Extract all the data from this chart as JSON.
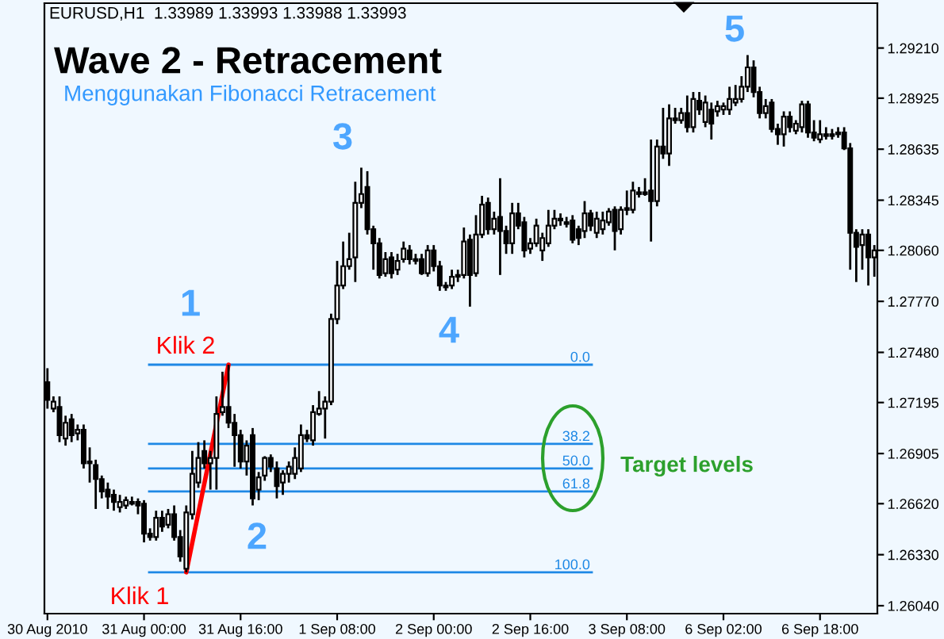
{
  "chart_data": {
    "type": "candlestick",
    "title": "Wave 2 - Retracement",
    "subtitle": "Menggunakan Fibonacci Retracement",
    "annotations": [
      "EURUSD,H1  1.33989 1.33993 1.33988 1.33993",
      "Klik 1",
      "Klik 2",
      "1",
      "2",
      "3",
      "4",
      "5",
      "Target levels",
      {
        "text": "0.0",
        "y": 1.2741
      },
      {
        "text": "38.2",
        "y": 1.2696
      },
      {
        "text": "50.0",
        "y": 1.2682
      },
      {
        "text": "61.8",
        "y": 1.2669
      },
      {
        "text": "100.0",
        "y": 1.2623
      }
    ],
    "categories": [
      "30 Aug 2010",
      null,
      null,
      null,
      null,
      null,
      null,
      null,
      null,
      null,
      null,
      null,
      null,
      null,
      null,
      null,
      "31 Aug 00:00",
      null,
      null,
      null,
      null,
      null,
      null,
      null,
      null,
      null,
      null,
      null,
      null,
      null,
      null,
      null,
      "31 Aug 16:00",
      null,
      null,
      null,
      null,
      null,
      null,
      null,
      null,
      null,
      null,
      null,
      null,
      null,
      null,
      null,
      "1 Sep 08:00",
      null,
      null,
      null,
      null,
      null,
      null,
      null,
      null,
      null,
      null,
      null,
      null,
      null,
      null,
      null,
      "2 Sep 00:00",
      null,
      null,
      null,
      null,
      null,
      null,
      null,
      null,
      null,
      null,
      null,
      null,
      null,
      null,
      null,
      "2 Sep 16:00",
      null,
      null,
      null,
      null,
      null,
      null,
      null,
      null,
      null,
      null,
      null,
      null,
      null,
      null,
      null,
      "3 Sep 08:00",
      null,
      null,
      null,
      null,
      null,
      null,
      null,
      null,
      null,
      null,
      null,
      null,
      null,
      null,
      null,
      "6 Sep 02:00",
      null,
      null,
      null,
      null,
      null,
      null,
      null,
      null,
      null,
      null,
      null,
      null,
      null,
      null,
      null,
      "6 Sep 18:00",
      null,
      null,
      null,
      null,
      null,
      null,
      null,
      null,
      null
    ],
    "ohlc": [
      [
        1.2731,
        1.2739,
        1.2716,
        1.2721
      ],
      [
        1.2716,
        1.2723,
        1.2714,
        1.272
      ],
      [
        1.2717,
        1.2723,
        1.2697,
        1.2701
      ],
      [
        1.2699,
        1.2712,
        1.2695,
        1.2708
      ],
      [
        1.271,
        1.2713,
        1.2697,
        1.2701
      ],
      [
        1.2702,
        1.2707,
        1.2698,
        1.2704
      ],
      [
        1.2704,
        1.2707,
        1.2682,
        1.2685
      ],
      [
        1.2685,
        1.2694,
        1.2674,
        1.2686
      ],
      [
        1.2684,
        1.2687,
        1.2659,
        1.2676
      ],
      [
        1.2676,
        1.2678,
        1.2665,
        1.2669
      ],
      [
        1.267,
        1.2674,
        1.2659,
        1.2666
      ],
      [
        1.2667,
        1.267,
        1.2658,
        1.2663
      ],
      [
        1.266,
        1.2667,
        1.2657,
        1.2663
      ],
      [
        1.2661,
        1.2666,
        1.2659,
        1.2664
      ],
      [
        1.2663,
        1.2666,
        1.2661,
        1.2662
      ],
      [
        1.2663,
        1.2665,
        1.2656,
        1.2661
      ],
      [
        1.2662,
        1.2664,
        1.264,
        1.2645
      ],
      [
        1.2645,
        1.2648,
        1.2641,
        1.2643
      ],
      [
        1.2643,
        1.2658,
        1.2641,
        1.2654
      ],
      [
        1.2654,
        1.2658,
        1.2646,
        1.2649
      ],
      [
        1.265,
        1.2659,
        1.2648,
        1.2656
      ],
      [
        1.2656,
        1.2661,
        1.2641,
        1.2643
      ],
      [
        1.2643,
        1.2647,
        1.2629,
        1.2632
      ],
      [
        1.2625,
        1.2661,
        1.2623,
        1.2657
      ],
      [
        1.2656,
        1.2692,
        1.2653,
        1.2679
      ],
      [
        1.2674,
        1.2697,
        1.2671,
        1.2688
      ],
      [
        1.2692,
        1.2698,
        1.2682,
        1.2685
      ],
      [
        1.2685,
        1.2692,
        1.267,
        1.2688
      ],
      [
        1.2688,
        1.2723,
        1.267,
        1.2713
      ],
      [
        1.2714,
        1.2737,
        1.2712,
        1.2717
      ],
      [
        1.2717,
        1.2741,
        1.2705,
        1.2708
      ],
      [
        1.2708,
        1.2713,
        1.2683,
        1.2701
      ],
      [
        1.2701,
        1.2704,
        1.2682,
        1.2686
      ],
      [
        1.2686,
        1.2698,
        1.2678,
        1.2695
      ],
      [
        1.2701,
        1.2705,
        1.2661,
        1.2665
      ],
      [
        1.267,
        1.268,
        1.2664,
        1.2677
      ],
      [
        1.2678,
        1.2689,
        1.2675,
        1.2688
      ],
      [
        1.2688,
        1.269,
        1.268,
        1.2683
      ],
      [
        1.2682,
        1.2686,
        1.2665,
        1.2672
      ],
      [
        1.2674,
        1.2681,
        1.2667,
        1.2679
      ],
      [
        1.2679,
        1.2686,
        1.2674,
        1.2683
      ],
      [
        1.2679,
        1.2694,
        1.2676,
        1.2688
      ],
      [
        1.2682,
        1.2707,
        1.268,
        1.2701
      ],
      [
        1.2701,
        1.2704,
        1.2697,
        1.2699
      ],
      [
        1.2698,
        1.2718,
        1.2695,
        1.2714
      ],
      [
        1.2713,
        1.2726,
        1.2712,
        1.2716
      ],
      [
        1.2716,
        1.2723,
        1.2699,
        1.272
      ],
      [
        1.272,
        1.277,
        1.2718,
        1.2767
      ],
      [
        1.2767,
        1.28,
        1.2764,
        1.2786
      ],
      [
        1.2786,
        1.2811,
        1.2784,
        1.2797
      ],
      [
        1.2797,
        1.2816,
        1.2795,
        1.2801
      ],
      [
        1.2802,
        1.2845,
        1.2788,
        1.2833
      ],
      [
        1.2833,
        1.2853,
        1.283,
        1.2838
      ],
      [
        1.2842,
        1.2851,
        1.2815,
        1.2818
      ],
      [
        1.2818,
        1.282,
        1.2795,
        1.281
      ],
      [
        1.281,
        1.2813,
        1.279,
        1.2792
      ],
      [
        1.2793,
        1.2805,
        1.2791,
        1.2801
      ],
      [
        1.2802,
        1.2805,
        1.279,
        1.2793
      ],
      [
        1.2795,
        1.2804,
        1.2792,
        1.28
      ],
      [
        1.2801,
        1.2811,
        1.2799,
        1.2807
      ],
      [
        1.2806,
        1.2809,
        1.2798,
        1.2801
      ],
      [
        1.2801,
        1.2804,
        1.2798,
        1.28
      ],
      [
        1.2801,
        1.2804,
        1.2792,
        1.2793
      ],
      [
        1.2793,
        1.2809,
        1.2791,
        1.2806
      ],
      [
        1.2806,
        1.2809,
        1.2794,
        1.2797
      ],
      [
        1.2797,
        1.28,
        1.2783,
        1.2786
      ],
      [
        1.2786,
        1.2788,
        1.2783,
        1.2785
      ],
      [
        1.2786,
        1.2795,
        1.2784,
        1.2791
      ],
      [
        1.2792,
        1.2795,
        1.2788,
        1.2791
      ],
      [
        1.2792,
        1.2819,
        1.279,
        1.2811
      ],
      [
        1.2812,
        1.2815,
        1.2774,
        1.2792
      ],
      [
        1.2793,
        1.2826,
        1.2791,
        1.2815
      ],
      [
        1.2815,
        1.2837,
        1.2813,
        1.2832
      ],
      [
        1.2833,
        1.2836,
        1.2815,
        1.2818
      ],
      [
        1.2818,
        1.2828,
        1.2815,
        1.2824
      ],
      [
        1.2825,
        1.2847,
        1.2792,
        1.2817
      ],
      [
        1.2817,
        1.282,
        1.2804,
        1.281
      ],
      [
        1.281,
        1.2833,
        1.2804,
        1.2827
      ],
      [
        1.2827,
        1.2833,
        1.2818,
        1.282
      ],
      [
        1.2822,
        1.2825,
        1.2802,
        1.2806
      ],
      [
        1.2807,
        1.2813,
        1.2804,
        1.281
      ],
      [
        1.281,
        1.2824,
        1.2808,
        1.282
      ],
      [
        1.2806,
        1.2816,
        1.28,
        1.2813
      ],
      [
        1.281,
        1.2829,
        1.2808,
        1.282
      ],
      [
        1.282,
        1.2829,
        1.2818,
        1.2824
      ],
      [
        1.2824,
        1.2827,
        1.282,
        1.2823
      ],
      [
        1.2822,
        1.2825,
        1.2819,
        1.2821
      ],
      [
        1.2823,
        1.2826,
        1.281,
        1.2812
      ],
      [
        1.2818,
        1.282,
        1.2809,
        1.2813
      ],
      [
        1.2817,
        1.2834,
        1.2813,
        1.2827
      ],
      [
        1.2827,
        1.2829,
        1.2817,
        1.282
      ],
      [
        1.2816,
        1.2828,
        1.2813,
        1.2824
      ],
      [
        1.2818,
        1.2828,
        1.2815,
        1.2823
      ],
      [
        1.2822,
        1.283,
        1.282,
        1.2828
      ],
      [
        1.2829,
        1.2831,
        1.2806,
        1.2817
      ],
      [
        1.2818,
        1.2831,
        1.2815,
        1.2829
      ],
      [
        1.2829,
        1.284,
        1.2826,
        1.283
      ],
      [
        1.2829,
        1.2845,
        1.2827,
        1.284
      ],
      [
        1.2839,
        1.2842,
        1.2836,
        1.2838
      ],
      [
        1.2839,
        1.2847,
        1.2837,
        1.2838
      ],
      [
        1.284,
        1.2869,
        1.2811,
        1.2834
      ],
      [
        1.2834,
        1.2869,
        1.2831,
        1.2865
      ],
      [
        1.2865,
        1.2887,
        1.2858,
        1.2861
      ],
      [
        1.2861,
        1.2889,
        1.2854,
        1.2881
      ],
      [
        1.2881,
        1.2887,
        1.2878,
        1.288
      ],
      [
        1.288,
        1.2887,
        1.2878,
        1.2884
      ],
      [
        1.2884,
        1.2894,
        1.2873,
        1.2876
      ],
      [
        1.2876,
        1.2896,
        1.2873,
        1.2892
      ],
      [
        1.2891,
        1.2896,
        1.2883,
        1.2886
      ],
      [
        1.2879,
        1.2894,
        1.2876,
        1.289
      ],
      [
        1.2886,
        1.289,
        1.2869,
        1.2878
      ],
      [
        1.2885,
        1.2891,
        1.2882,
        1.2888
      ],
      [
        1.2886,
        1.289,
        1.2883,
        1.2888
      ],
      [
        1.2886,
        1.2899,
        1.2883,
        1.2892
      ],
      [
        1.289,
        1.29,
        1.2888,
        1.2892
      ],
      [
        1.2892,
        1.2905,
        1.289,
        1.2899
      ],
      [
        1.2899,
        1.2917,
        1.2896,
        1.291
      ],
      [
        1.291,
        1.2914,
        1.2893,
        1.2896
      ],
      [
        1.2896,
        1.2899,
        1.2881,
        1.2884
      ],
      [
        1.2884,
        1.2892,
        1.2881,
        1.2888
      ],
      [
        1.289,
        1.2892,
        1.2873,
        1.2875
      ],
      [
        1.2875,
        1.2878,
        1.2866,
        1.2872
      ],
      [
        1.2872,
        1.2885,
        1.2865,
        1.2882
      ],
      [
        1.2882,
        1.2885,
        1.2873,
        1.2876
      ],
      [
        1.2874,
        1.288,
        1.2872,
        1.2878
      ],
      [
        1.2876,
        1.2891,
        1.2873,
        1.2889
      ],
      [
        1.2889,
        1.2891,
        1.287,
        1.2873
      ],
      [
        1.2873,
        1.288,
        1.2868,
        1.287
      ],
      [
        1.2869,
        1.288,
        1.2867,
        1.2872
      ],
      [
        1.2872,
        1.2876,
        1.2869,
        1.2871
      ],
      [
        1.2872,
        1.2875,
        1.2869,
        1.2871
      ],
      [
        1.2873,
        1.2876,
        1.287,
        1.2872
      ],
      [
        1.2873,
        1.2876,
        1.2863,
        1.2864
      ],
      [
        1.2864,
        1.2867,
        1.2795,
        1.2816
      ],
      [
        1.2816,
        1.2818,
        1.2788,
        1.2808
      ],
      [
        1.2809,
        1.2818,
        1.2795,
        1.2815
      ],
      [
        1.2815,
        1.2818,
        1.2786,
        1.2802
      ],
      [
        1.2802,
        1.2809,
        1.2791,
        1.2806
      ]
    ],
    "series": [
      {
        "type": "line",
        "color": "#ff0000",
        "values": [
          null,
          null,
          null,
          null,
          null,
          null,
          null,
          null,
          null,
          null,
          null,
          null,
          null,
          null,
          null,
          null,
          null,
          null,
          null,
          null,
          null,
          null,
          null,
          1.2623,
          null,
          null,
          null,
          null,
          null,
          null,
          1.2741,
          null,
          null,
          null,
          null,
          null,
          null,
          null,
          null,
          null,
          null,
          null,
          null,
          null,
          null,
          null,
          null,
          null,
          null,
          null,
          null,
          null,
          null,
          null,
          null,
          null,
          null,
          null,
          null,
          null,
          null,
          null,
          null,
          null,
          null,
          null,
          null,
          null,
          null,
          null,
          null,
          null,
          null,
          null,
          null,
          null,
          null,
          null,
          null,
          null,
          null,
          null,
          null,
          null,
          null,
          null,
          null,
          null,
          null,
          null,
          null,
          null,
          null,
          null,
          null,
          null,
          null,
          null,
          null,
          null,
          null,
          null,
          null,
          null,
          null,
          null,
          null,
          null,
          null,
          null,
          null,
          null,
          null,
          null,
          null,
          null,
          null,
          null,
          null,
          null,
          null,
          null,
          null,
          null,
          null,
          null,
          null,
          null,
          null,
          null,
          null,
          null,
          null,
          null,
          null,
          null,
          null,
          null
        ]
      }
    ],
    "ref_lines": [
      {
        "axis": "y",
        "value": 1.2741,
        "color": "#1e88e5"
      },
      {
        "axis": "y",
        "value": 1.2696,
        "color": "#1e88e5"
      },
      {
        "axis": "y",
        "value": 1.2682,
        "color": "#1e88e5"
      },
      {
        "axis": "y",
        "value": 1.2669,
        "color": "#1e88e5"
      },
      {
        "axis": "y",
        "value": 1.2623,
        "color": "#1e88e5"
      }
    ],
    "ylim": [
      1.25995,
      1.29465
    ],
    "yticks": [
      {
        "value": 1.2604,
        "label": "1.26040"
      },
      {
        "value": 1.2633,
        "label": "1.26330"
      },
      {
        "value": 1.2662,
        "label": "1.26620"
      },
      {
        "value": 1.26905,
        "label": "1.26905"
      },
      {
        "value": 1.27195,
        "label": "1.27195"
      },
      {
        "value": 1.2748,
        "label": "1.27480"
      },
      {
        "value": 1.2777,
        "label": "1.27770"
      },
      {
        "value": 1.2806,
        "label": "1.28060"
      },
      {
        "value": 1.28345,
        "label": "1.28345"
      },
      {
        "value": 1.28635,
        "label": "1.28635"
      },
      {
        "value": 1.28925,
        "label": "1.28925"
      },
      {
        "value": 1.2921,
        "label": "1.29210"
      }
    ],
    "grid": false,
    "legend": false
  }
}
